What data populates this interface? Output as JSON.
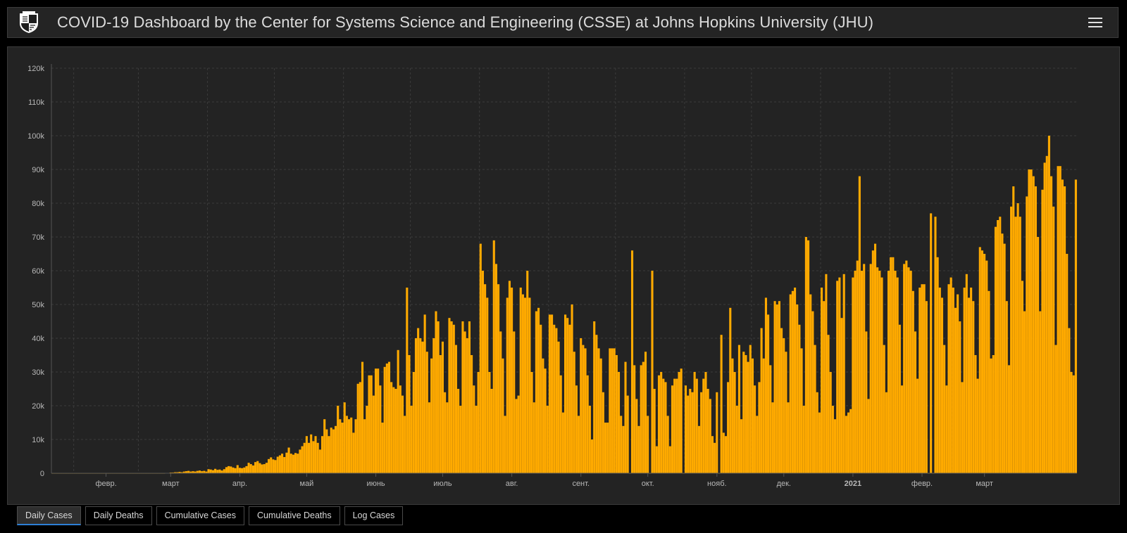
{
  "header": {
    "title": "COVID-19 Dashboard by the Center for Systems Science and Engineering (CSSE) at Johns Hopkins University (JHU)",
    "logo_icon": "jhu-shield-icon",
    "menu_icon": "hamburger-menu-icon"
  },
  "colors": {
    "bar": "#FFAA00",
    "panel_bg": "#232323",
    "page_bg": "#000000",
    "active_tab_indicator": "#2d7fd6"
  },
  "tabs": [
    {
      "label": "Daily Cases",
      "active": true
    },
    {
      "label": "Daily Deaths",
      "active": false
    },
    {
      "label": "Cumulative Cases",
      "active": false
    },
    {
      "label": "Cumulative Deaths",
      "active": false
    },
    {
      "label": "Log Cases",
      "active": false
    }
  ],
  "chart_data": {
    "type": "bar",
    "title": "",
    "xlabel": "",
    "ylabel": "",
    "ylim": [
      0,
      120000
    ],
    "yticks": [
      {
        "value": 0,
        "label": "0"
      },
      {
        "value": 10000,
        "label": "10k"
      },
      {
        "value": 20000,
        "label": "20k"
      },
      {
        "value": 30000,
        "label": "30k"
      },
      {
        "value": 40000,
        "label": "40k"
      },
      {
        "value": 50000,
        "label": "50k"
      },
      {
        "value": 60000,
        "label": "60k"
      },
      {
        "value": 70000,
        "label": "70k"
      },
      {
        "value": 80000,
        "label": "80k"
      },
      {
        "value": 90000,
        "label": "90k"
      },
      {
        "value": 100000,
        "label": "100k"
      },
      {
        "value": 110000,
        "label": "110k"
      },
      {
        "value": 120000,
        "label": "120k"
      }
    ],
    "x_start_date": "2020-01-22",
    "x_end_date": "2021-03-31",
    "x_tick_labels": [
      {
        "date": "2020-02-15",
        "label": "февр.",
        "bold": false
      },
      {
        "date": "2020-03-15",
        "label": "март",
        "bold": false
      },
      {
        "date": "2020-04-15",
        "label": "апр.",
        "bold": false
      },
      {
        "date": "2020-05-15",
        "label": "май",
        "bold": false
      },
      {
        "date": "2020-06-15",
        "label": "июнь",
        "bold": false
      },
      {
        "date": "2020-07-15",
        "label": "июль",
        "bold": false
      },
      {
        "date": "2020-08-15",
        "label": "авг.",
        "bold": false
      },
      {
        "date": "2020-09-15",
        "label": "сент.",
        "bold": false
      },
      {
        "date": "2020-10-15",
        "label": "окт.",
        "bold": false
      },
      {
        "date": "2020-11-15",
        "label": "нояб.",
        "bold": false
      },
      {
        "date": "2020-12-15",
        "label": "дек.",
        "bold": false
      },
      {
        "date": "2021-01-15",
        "label": "2021",
        "bold": true
      },
      {
        "date": "2021-02-15",
        "label": "февр.",
        "bold": false
      },
      {
        "date": "2021-03-15",
        "label": "март",
        "bold": false
      }
    ],
    "x_month_gridlines": [
      "2020-02-01",
      "2020-03-01",
      "2020-04-01",
      "2020-05-01",
      "2020-06-01",
      "2020-07-01",
      "2020-08-01",
      "2020-09-01",
      "2020-10-01",
      "2020-11-01",
      "2020-12-01",
      "2021-01-01",
      "2021-02-01",
      "2021-03-01"
    ],
    "grid": true,
    "legend": "none",
    "series": [
      {
        "values": [
          0,
          0,
          0,
          0,
          0,
          0,
          0,
          0,
          0,
          0,
          0,
          0,
          0,
          0,
          0,
          0,
          0,
          0,
          0,
          0,
          0,
          0,
          0,
          0,
          0,
          0,
          0,
          0,
          0,
          0,
          0,
          0,
          0,
          0,
          0,
          0,
          0,
          0,
          0,
          0,
          0,
          0,
          0,
          0,
          0,
          0,
          0,
          0,
          0,
          0,
          0,
          100,
          100,
          200,
          200,
          300,
          300,
          400,
          300,
          500,
          600,
          700,
          500,
          600,
          500,
          700,
          800,
          600,
          700,
          500,
          1200,
          1100,
          900,
          1300,
          1000,
          1100,
          800,
          1200,
          1800,
          2100,
          2000,
          1700,
          1500,
          2400,
          1600,
          1500,
          1700,
          2100,
          3100,
          2700,
          2300,
          3300,
          3600,
          3000,
          2600,
          2700,
          3100,
          4200,
          4700,
          4100,
          3900,
          4900,
          5300,
          5800,
          4800,
          6100,
          7600,
          5800,
          5500,
          6000,
          5800,
          7000,
          8000,
          9000,
          11000,
          9000,
          11500,
          9500,
          11000,
          9000,
          7000,
          11000,
          16000,
          13000,
          11000,
          13500,
          13000,
          14000,
          20000,
          16000,
          15000,
          21000,
          17000,
          16000,
          16500,
          12000,
          16000,
          26500,
          27000,
          33000,
          16000,
          20000,
          29000,
          29000,
          23000,
          31000,
          31000,
          26000,
          15000,
          31500,
          32500,
          33000,
          27000,
          25500,
          25000,
          36500,
          26000,
          23000,
          17000,
          55000,
          35000,
          20000,
          30000,
          40000,
          43000,
          40000,
          39000,
          47000,
          36000,
          21000,
          34000,
          40000,
          48000,
          45000,
          35000,
          39000,
          24000,
          21000,
          46000,
          45000,
          44000,
          38000,
          25000,
          20000,
          45000,
          42000,
          40000,
          45000,
          35000,
          26000,
          20000,
          30000,
          68000,
          60000,
          56000,
          52000,
          30000,
          25000,
          69000,
          62000,
          56000,
          42000,
          34000,
          17000,
          52000,
          57000,
          55000,
          42000,
          22000,
          23000,
          55000,
          53000,
          52000,
          60000,
          52000,
          30000,
          21000,
          48000,
          49000,
          44000,
          34000,
          31000,
          20000,
          47000,
          47000,
          44000,
          43000,
          39000,
          29000,
          18000,
          47000,
          46000,
          44000,
          50000,
          36000,
          26000,
          17000,
          40000,
          38000,
          37000,
          29000,
          20000,
          10000,
          45000,
          41000,
          37000,
          34000,
          24000,
          15000,
          15000,
          37000,
          37000,
          37000,
          35000,
          30000,
          17000,
          14000,
          33000,
          23000,
          0,
          66000,
          32000,
          22000,
          14000,
          32000,
          33000,
          36000,
          17000,
          0,
          60000,
          25000,
          8000,
          29000,
          30000,
          28000,
          27000,
          17000,
          8000,
          26000,
          28000,
          28000,
          30000,
          31000,
          0,
          26000,
          23000,
          25000,
          24000,
          30000,
          28000,
          14000,
          24000,
          28000,
          30000,
          25000,
          22000,
          11000,
          9000,
          24000,
          0,
          41000,
          12000,
          11000,
          27000,
          49000,
          34000,
          30000,
          20000,
          38000,
          16000,
          36000,
          35000,
          33000,
          38000,
          34000,
          26000,
          17000,
          27000,
          43000,
          34000,
          52000,
          47000,
          32000,
          21000,
          51000,
          50000,
          51000,
          43000,
          40000,
          36000,
          21000,
          53000,
          54000,
          55000,
          50000,
          44000,
          37000,
          20000,
          70000,
          69000,
          53000,
          48000,
          38000,
          24000,
          18000,
          55000,
          51000,
          59000,
          41000,
          30000,
          20000,
          16000,
          57000,
          58000,
          46000,
          59000,
          17000,
          18000,
          19000,
          58000,
          60000,
          63000,
          88000,
          60000,
          62000,
          42000,
          22000,
          62000,
          66000,
          68000,
          61000,
          60000,
          58000,
          38000,
          24000,
          60000,
          64000,
          64000,
          60000,
          58000,
          44000,
          26000,
          62000,
          63000,
          61000,
          60000,
          54000,
          42000,
          28000,
          55000,
          56000,
          56000,
          51000,
          0,
          77000,
          0,
          76000,
          64000,
          55000,
          52000,
          38000,
          26000,
          56000,
          58000,
          55000,
          49000,
          53000,
          45000,
          27000,
          55000,
          59000,
          52000,
          55000,
          51000,
          35000,
          28000,
          67000,
          66000,
          65000,
          63000,
          54000,
          34000,
          35000,
          73000,
          75000,
          76000,
          71000,
          68000,
          51000,
          32000,
          79000,
          85000,
          76000,
          80000,
          76000,
          57000,
          48000,
          82000,
          90000,
          90000,
          88000,
          85000,
          70000,
          48000,
          84000,
          92000,
          94000,
          100000,
          88000,
          79000,
          38000,
          91000,
          91000,
          87000,
          85000,
          65000,
          43000,
          30000,
          29000,
          87000
        ]
      }
    ]
  }
}
